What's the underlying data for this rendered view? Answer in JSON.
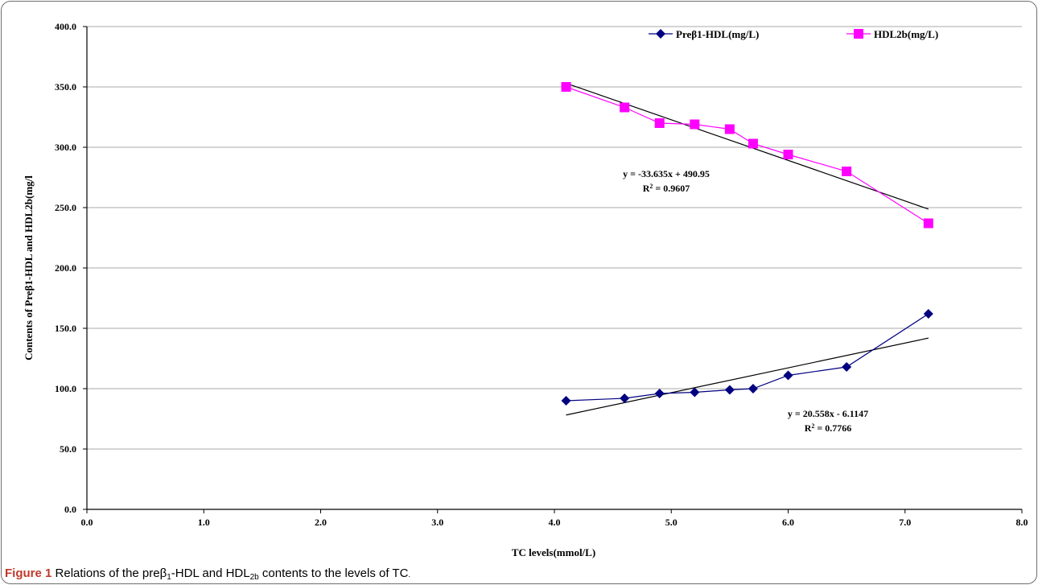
{
  "chart_data": {
    "type": "scatter",
    "xlabel": "TC levels(mmol/L)",
    "ylabel": "Contents of Preβ1-HDL and HDL2b(mg/l",
    "xlim": [
      0,
      8
    ],
    "ylim": [
      0,
      400
    ],
    "xticks": [
      "0.0",
      "1.0",
      "2.0",
      "3.0",
      "4.0",
      "5.0",
      "6.0",
      "7.0",
      "8.0"
    ],
    "yticks": [
      "0.0",
      "50.0",
      "100.0",
      "150.0",
      "200.0",
      "250.0",
      "300.0",
      "350.0",
      "400.0"
    ],
    "grid": "horizontal",
    "legend": "top-right",
    "series": [
      {
        "name": "Preβ1-HDL(mg/L)",
        "color": "#000080",
        "marker": "diamond",
        "x": [
          4.1,
          4.6,
          4.9,
          5.2,
          5.5,
          5.7,
          6.0,
          6.5,
          7.2
        ],
        "y": [
          90,
          92,
          96,
          97,
          99,
          100,
          111,
          118,
          162
        ],
        "trendline": {
          "slope": 20.558,
          "intercept": -6.1147,
          "equation": "y = 20.558x - 6.1147",
          "r2_label": "R",
          "r2_value": "= 0.7766"
        }
      },
      {
        "name": "HDL2b(mg/L)",
        "color": "#ff00ff",
        "marker": "square",
        "x": [
          4.1,
          4.6,
          4.9,
          5.2,
          5.5,
          5.7,
          6.0,
          6.5,
          7.2
        ],
        "y": [
          350,
          333,
          320,
          319,
          315,
          303,
          294,
          280,
          237
        ],
        "trendline": {
          "slope": -33.635,
          "intercept": 490.95,
          "equation": "y = -33.635x + 490.95",
          "r2_label": "R",
          "r2_value": "= 0.9607"
        }
      }
    ]
  },
  "caption": {
    "lead": "Figure 1",
    "t1": " Relations of the preβ",
    "s1": "1",
    "t2": "-HDL and HDL",
    "s2": "2b",
    "t3": " contents to the levels of TC",
    "t4": "."
  }
}
